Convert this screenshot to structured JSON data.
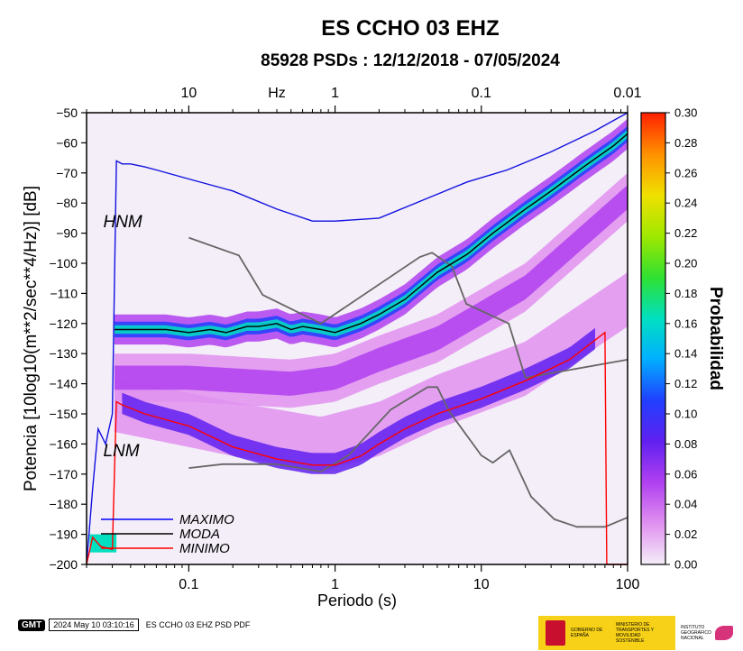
{
  "header": {
    "title": "ES CCHO 03 EHZ",
    "subtitle": "85928 PSDs : 12/12/2018 - 07/05/2024"
  },
  "footer": {
    "logo_text": "GMT",
    "timestamp": "2024 May 10 03:10:16",
    "caption": "ES CCHO 03 EHZ PSD PDF"
  },
  "logos": {
    "gov_line1": "GOBIERNO DE ESPAÑA",
    "gov_line2": "MINISTERIO DE TRANSPORTES Y MOVILIDAD SOSTENIBLE",
    "ign_text": "INSTITUTO GEOGRÁFICO NACIONAL"
  },
  "chart_data": {
    "type": "heatmap",
    "xlabel": "Periodo (s)",
    "ylabel": "Potencia [10log10(m**2/sec**4/Hz)] [dB]",
    "xscale": "log",
    "xlim": [
      0.02,
      100
    ],
    "ylim": [
      -200,
      -50
    ],
    "x_ticks": [
      0.1,
      1,
      10,
      100
    ],
    "x_tick_labels": [
      "0.1",
      "1",
      "10",
      "100"
    ],
    "y_ticks": [
      -50,
      -60,
      -70,
      -80,
      -90,
      -100,
      -110,
      -120,
      -130,
      -140,
      -150,
      -160,
      -170,
      -180,
      -190,
      -200
    ],
    "top_axis": {
      "label": "Hz",
      "ticks": [
        10,
        1,
        0.1,
        0.01
      ],
      "tick_labels": [
        "10",
        "1",
        "0.1",
        "0.01"
      ]
    },
    "colorbar": {
      "label": "Probabilidad",
      "range": [
        0,
        0.3
      ],
      "ticks": [
        0.0,
        0.02,
        0.04,
        0.06,
        0.08,
        0.1,
        0.12,
        0.14,
        0.16,
        0.18,
        0.2,
        0.22,
        0.24,
        0.26,
        0.28,
        0.3
      ],
      "tick_labels": [
        "0.00",
        "0.02",
        "0.04",
        "0.06",
        "0.08",
        "0.10",
        "0.12",
        "0.14",
        "0.16",
        "0.18",
        "0.20",
        "0.22",
        "0.24",
        "0.26",
        "0.28",
        "0.30"
      ],
      "colors": [
        "#f4eef8",
        "#e090f0",
        "#b040f0",
        "#6020f0",
        "#2040ff",
        "#00b0ff",
        "#00e0c0",
        "#30e030",
        "#a0e800",
        "#f0e000",
        "#ff9000",
        "#ff2000"
      ]
    },
    "model_labels": [
      {
        "text": "HNM",
        "x": 0.026,
        "y": -88
      },
      {
        "text": "LNM",
        "x": 0.026,
        "y": -164
      }
    ],
    "legend": {
      "placement": "bottom-left",
      "entries": [
        {
          "name": "MAXIMO",
          "color": "#0000ff"
        },
        {
          "name": "MODA",
          "color": "#000000"
        },
        {
          "name": "MINIMO",
          "color": "#ff0000"
        }
      ]
    },
    "series": [
      {
        "name": "MAXIMO",
        "color": "#1010e0",
        "x": [
          0.02,
          0.022,
          0.024,
          0.027,
          0.03,
          0.032,
          0.035,
          0.04,
          0.05,
          0.06,
          0.1,
          0.2,
          0.4,
          0.7,
          1.0,
          2.0,
          4.0,
          8.0,
          15.0,
          30.0,
          60.0,
          100.0
        ],
        "y": [
          -200,
          -175,
          -155,
          -160,
          -150,
          -66,
          -67,
          -67,
          -68,
          -69,
          -72,
          -76,
          -82,
          -86,
          -86,
          -85,
          -79,
          -73,
          -69,
          -63,
          -56,
          -50
        ]
      },
      {
        "name": "MODA",
        "color": "#000000",
        "x": [
          0.031,
          0.035,
          0.05,
          0.07,
          0.1,
          0.14,
          0.18,
          0.25,
          0.3,
          0.4,
          0.5,
          0.6,
          0.8,
          1.0,
          1.5,
          2.0,
          3.0,
          5.0,
          8.0,
          12.0,
          20.0,
          30.0,
          50.0,
          80.0,
          100.0
        ],
        "y": [
          -122,
          -122,
          -122,
          -122,
          -123,
          -122,
          -123,
          -121,
          -121,
          -120,
          -122,
          -121,
          -122,
          -123,
          -120,
          -117,
          -112,
          -103,
          -97,
          -90,
          -82,
          -76,
          -68,
          -61,
          -57
        ]
      },
      {
        "name": "MINIMO",
        "color": "#ff0000",
        "x": [
          0.02,
          0.022,
          0.025,
          0.03,
          0.032,
          0.035,
          0.05,
          0.1,
          0.2,
          0.4,
          0.7,
          1.0,
          1.5,
          2.0,
          3.0,
          5.0,
          10.0,
          20.0,
          40.0,
          70.0,
          72.0,
          100.0
        ],
        "y": [
          -200,
          -191,
          -194,
          -195,
          -146,
          -147,
          -150,
          -154,
          -161,
          -165,
          -167,
          -167,
          -164,
          -160,
          -155,
          -150,
          -145,
          -139,
          -132,
          -123,
          -200,
          -200
        ]
      },
      {
        "name": "NHNM",
        "color": "#666666",
        "x": [
          0.1,
          0.22,
          0.32,
          0.8,
          3.8,
          4.6,
          6.3,
          7.9,
          15.4,
          20.0
        ],
        "y": [
          -91.5,
          -97.4,
          -110.5,
          -120.0,
          -97.9,
          -96.5,
          -101.0,
          -113.5,
          -120.0,
          -138.0
        ]
      },
      {
        "name": "NHNM_long",
        "color": "#666666",
        "x": [
          20.0,
          100.0
        ],
        "y": [
          -138.0,
          -132.0
        ]
      },
      {
        "name": "NLNM",
        "color": "#666666",
        "x": [
          0.1,
          0.17,
          0.4,
          0.8,
          1.24,
          2.4,
          4.3,
          5.0,
          6.0,
          10.0,
          12.0,
          15.6,
          21.9,
          31.6,
          45.0,
          70.0,
          100.0
        ],
        "y": [
          -168.0,
          -166.7,
          -166.7,
          -169.2,
          -163.7,
          -148.6,
          -141.1,
          -141.1,
          -149.0,
          -163.8,
          -166.2,
          -162.1,
          -177.5,
          -185.0,
          -187.5,
          -187.5,
          -184.4
        ]
      }
    ]
  }
}
